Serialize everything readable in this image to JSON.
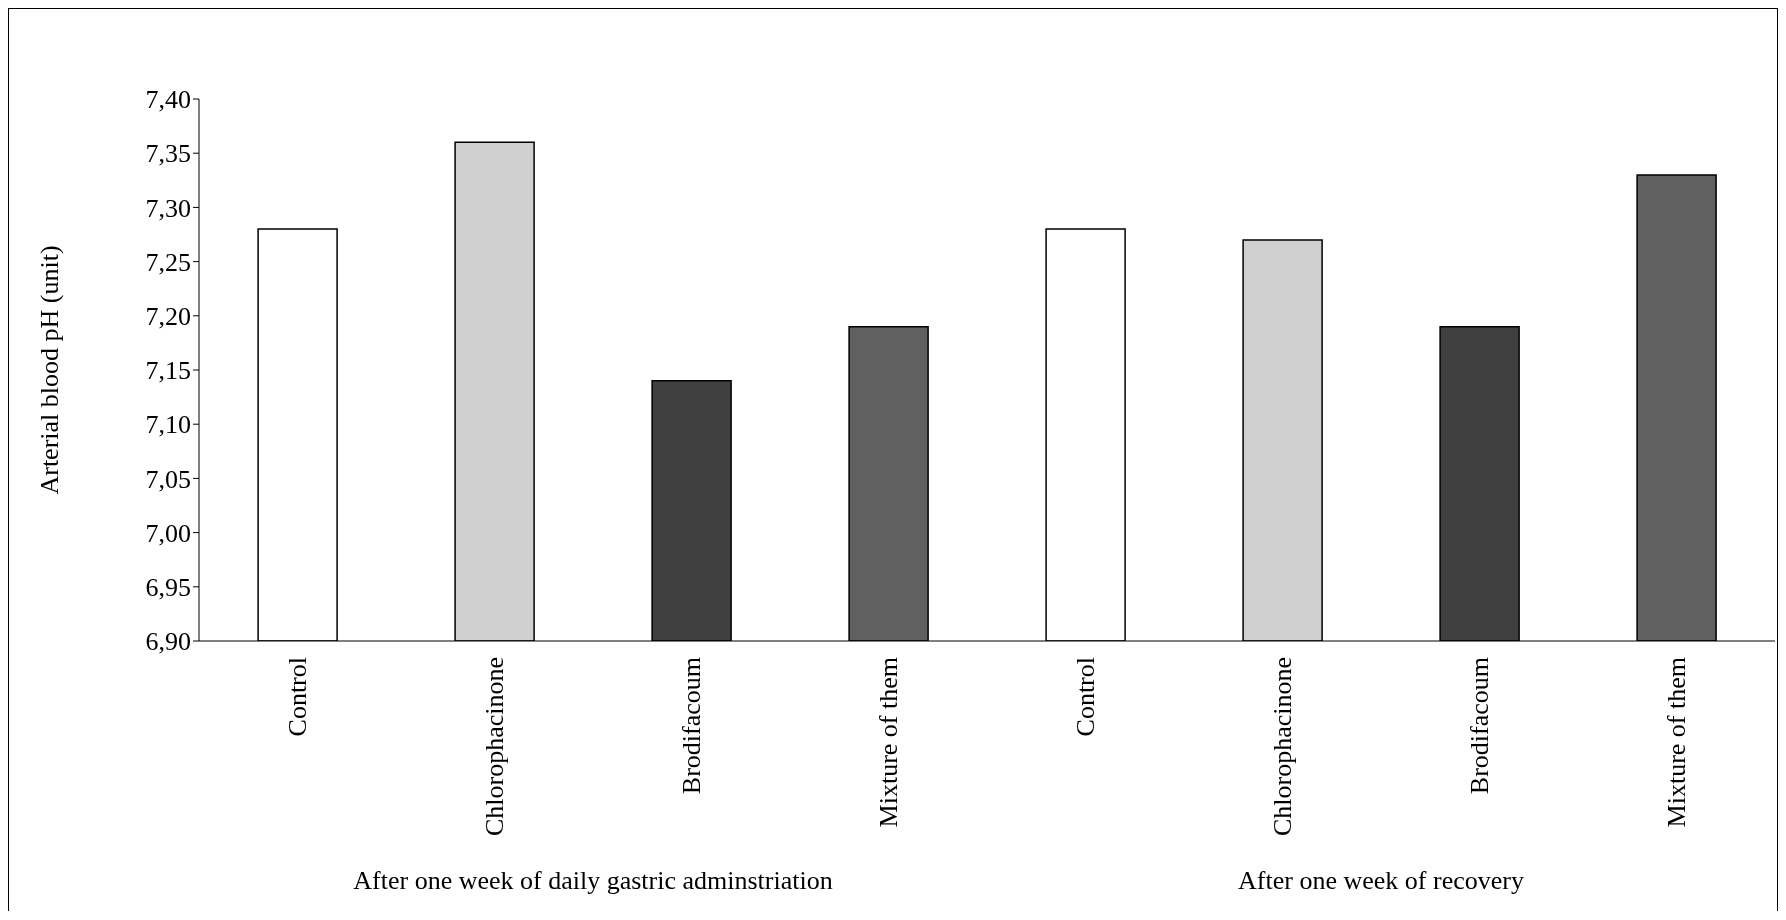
{
  "chart_data": {
    "type": "bar",
    "ylabel": "Arterial blood pH (unit)",
    "categories": [
      "Control",
      "Chlorophacinone",
      "Brodifacoum",
      "Mixture of them",
      "Control",
      "Chlorophacinone",
      "Brodifacoum",
      "Mixture of them"
    ],
    "values": [
      7.28,
      7.36,
      7.14,
      7.19,
      7.28,
      7.27,
      7.19,
      7.33
    ],
    "colors": [
      "#ffffff",
      "#d0d0d0",
      "#404040",
      "#606060",
      "#ffffff",
      "#d0d0d0",
      "#404040",
      "#606060"
    ],
    "ylim": [
      6.9,
      7.4
    ],
    "yticks": [
      {
        "value": 6.9,
        "label": "6,90"
      },
      {
        "value": 6.95,
        "label": "6,95"
      },
      {
        "value": 7.0,
        "label": "7,00"
      },
      {
        "value": 7.05,
        "label": "7,05"
      },
      {
        "value": 7.1,
        "label": "7,10"
      },
      {
        "value": 7.15,
        "label": "7,15"
      },
      {
        "value": 7.2,
        "label": "7,20"
      },
      {
        "value": 7.25,
        "label": "7,25"
      },
      {
        "value": 7.3,
        "label": "7,30"
      },
      {
        "value": 7.35,
        "label": "7,35"
      },
      {
        "value": 7.4,
        "label": "7,40"
      }
    ],
    "annotations": [
      "After one week of daily gastric adminstriation",
      "After one week of recovery"
    ],
    "grid": false,
    "legend": false
  }
}
